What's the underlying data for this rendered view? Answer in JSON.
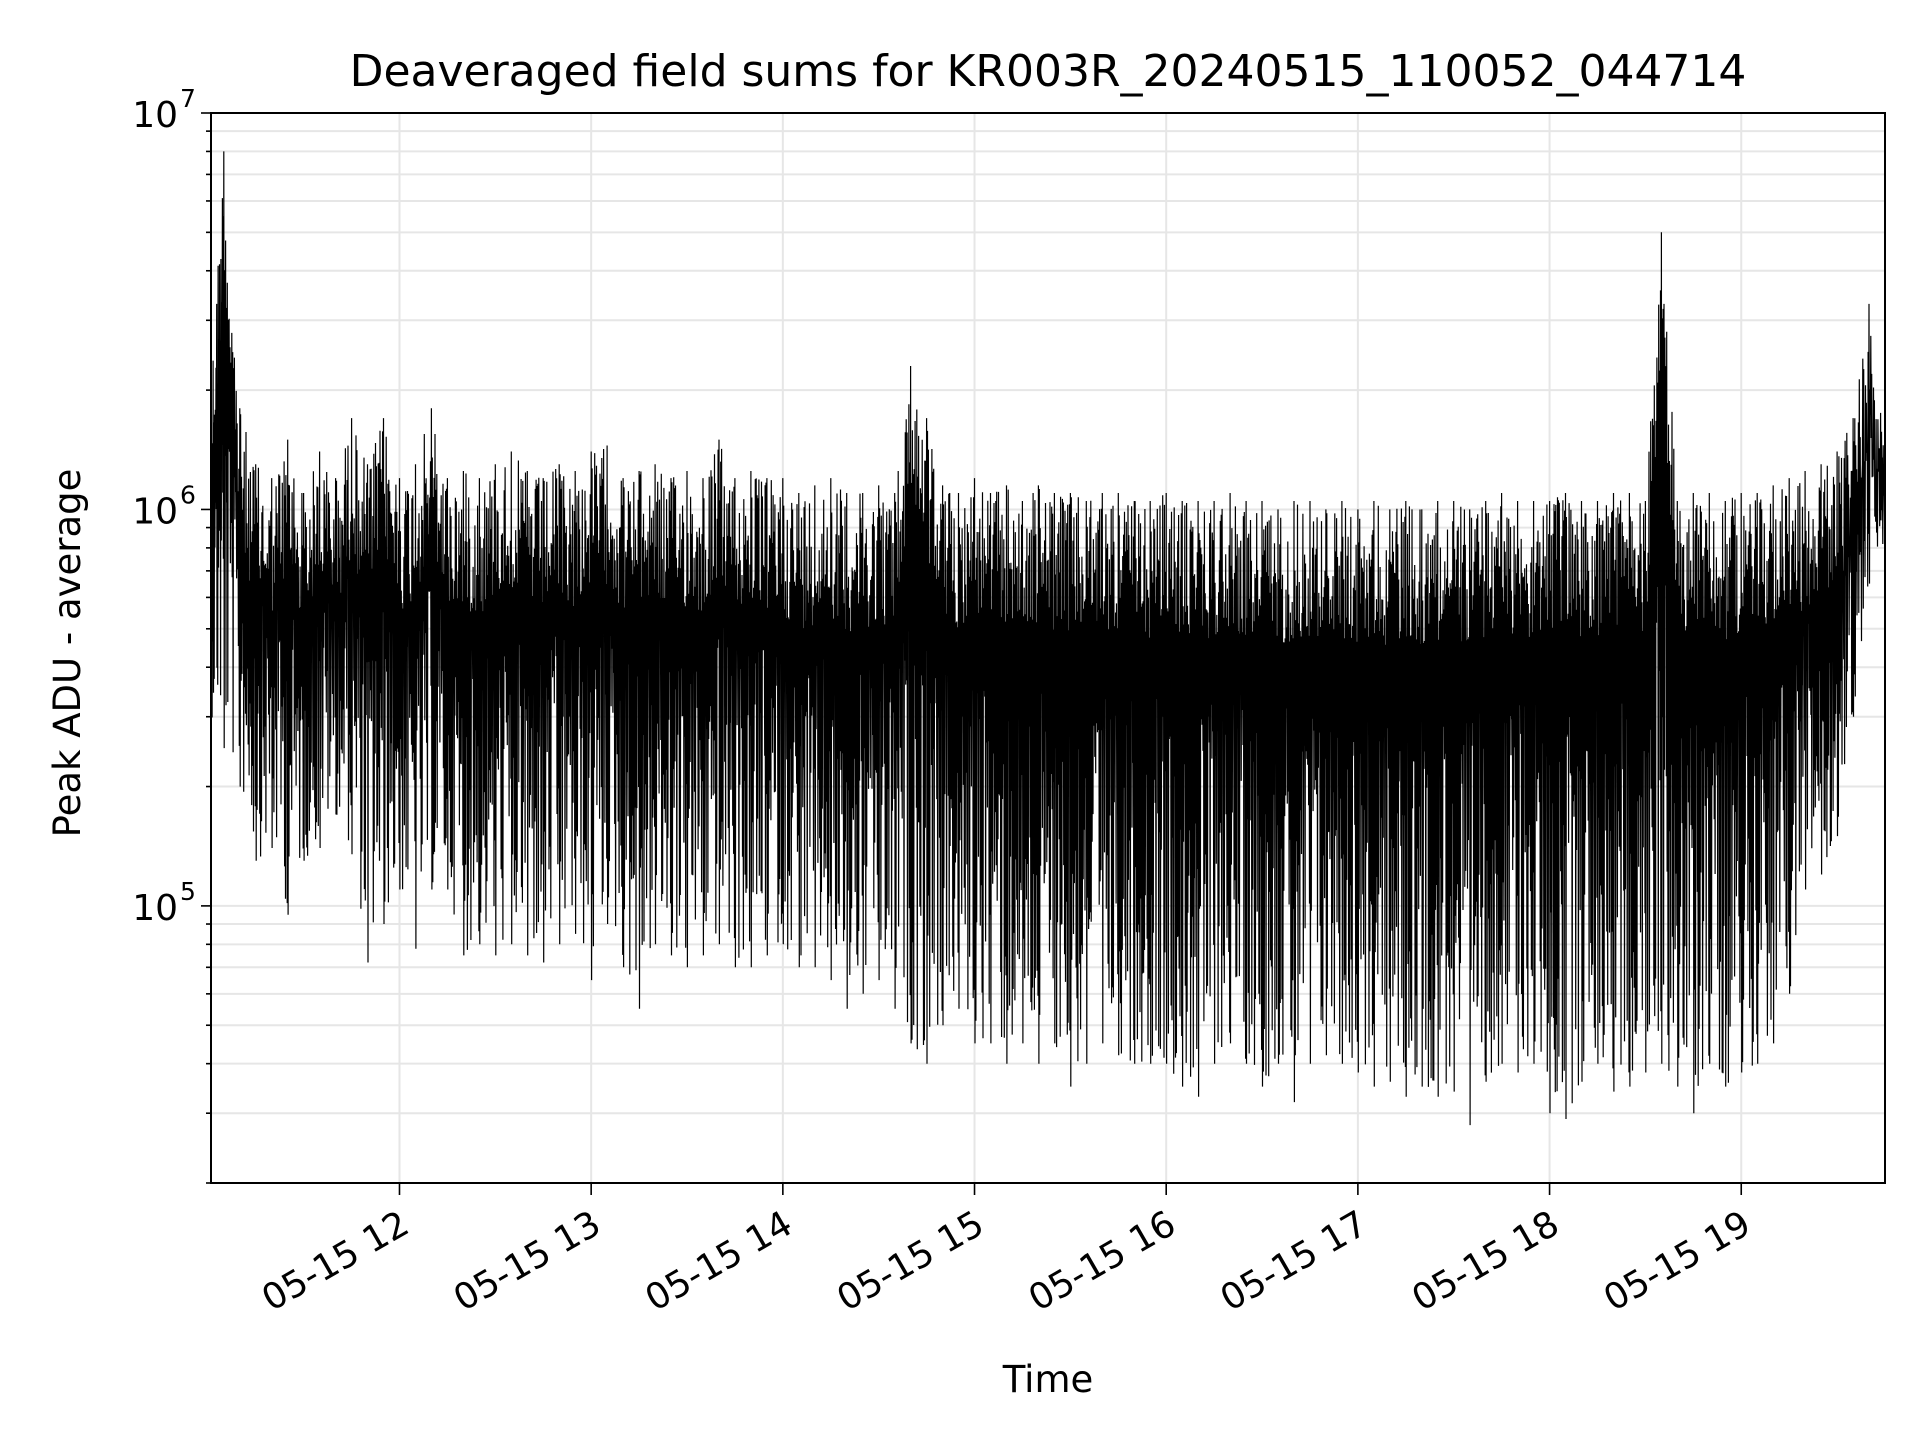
{
  "chart_data": {
    "type": "line",
    "title": "Deaveraged field sums for KR003R_20240515_110052_044714",
    "xlabel": "Time",
    "ylabel": "Peak ADU - average",
    "x_scale": "time",
    "y_scale": "log",
    "xlim": [
      "2024-05-15 11:01",
      "2024-05-15 19:45"
    ],
    "ylim": [
      20000,
      10000000
    ],
    "x_ticks": [
      {
        "value": "2024-05-15 12:00",
        "label": "05-15 12"
      },
      {
        "value": "2024-05-15 13:00",
        "label": "05-15 13"
      },
      {
        "value": "2024-05-15 14:00",
        "label": "05-15 14"
      },
      {
        "value": "2024-05-15 15:00",
        "label": "05-15 15"
      },
      {
        "value": "2024-05-15 16:00",
        "label": "05-15 16"
      },
      {
        "value": "2024-05-15 17:00",
        "label": "05-15 17"
      },
      {
        "value": "2024-05-15 18:00",
        "label": "05-15 18"
      },
      {
        "value": "2024-05-15 19:00",
        "label": "05-15 19"
      }
    ],
    "y_ticks": [
      {
        "value": 100000,
        "base": "10",
        "exp": "5"
      },
      {
        "value": 1000000,
        "base": "10",
        "exp": "6"
      },
      {
        "value": 10000000,
        "base": "10",
        "exp": "7"
      }
    ],
    "grid": true,
    "legend": "none",
    "line_color": "#000000",
    "series": [
      {
        "x": [
          "2024-05-15 11:01",
          "2024-05-15 11:05",
          "2024-05-15 11:10",
          "2024-05-15 11:15",
          "2024-05-15 11:20",
          "2024-05-15 11:25",
          "2024-05-15 11:30",
          "2024-05-15 11:35",
          "2024-05-15 11:40",
          "2024-05-15 11:45",
          "2024-05-15 11:50",
          "2024-05-15 11:55",
          "2024-05-15 12:00",
          "2024-05-15 12:05",
          "2024-05-15 12:10",
          "2024-05-15 12:15",
          "2024-05-15 12:20",
          "2024-05-15 12:25",
          "2024-05-15 12:30",
          "2024-05-15 12:35",
          "2024-05-15 12:40",
          "2024-05-15 12:45",
          "2024-05-15 12:50",
          "2024-05-15 12:55",
          "2024-05-15 13:00",
          "2024-05-15 13:05",
          "2024-05-15 13:10",
          "2024-05-15 13:15",
          "2024-05-15 13:20",
          "2024-05-15 13:25",
          "2024-05-15 13:30",
          "2024-05-15 13:35",
          "2024-05-15 13:40",
          "2024-05-15 13:45",
          "2024-05-15 13:50",
          "2024-05-15 13:55",
          "2024-05-15 14:00",
          "2024-05-15 14:05",
          "2024-05-15 14:10",
          "2024-05-15 14:15",
          "2024-05-15 14:20",
          "2024-05-15 14:25",
          "2024-05-15 14:30",
          "2024-05-15 14:35",
          "2024-05-15 14:40",
          "2024-05-15 14:45",
          "2024-05-15 14:50",
          "2024-05-15 14:55",
          "2024-05-15 15:00",
          "2024-05-15 15:05",
          "2024-05-15 15:10",
          "2024-05-15 15:15",
          "2024-05-15 15:20",
          "2024-05-15 15:25",
          "2024-05-15 15:30",
          "2024-05-15 15:35",
          "2024-05-15 15:40",
          "2024-05-15 15:45",
          "2024-05-15 15:50",
          "2024-05-15 15:55",
          "2024-05-15 16:00",
          "2024-05-15 16:05",
          "2024-05-15 16:10",
          "2024-05-15 16:15",
          "2024-05-15 16:20",
          "2024-05-15 16:25",
          "2024-05-15 16:30",
          "2024-05-15 16:35",
          "2024-05-15 16:40",
          "2024-05-15 16:45",
          "2024-05-15 16:50",
          "2024-05-15 16:55",
          "2024-05-15 17:00",
          "2024-05-15 17:05",
          "2024-05-15 17:10",
          "2024-05-15 17:15",
          "2024-05-15 17:20",
          "2024-05-15 17:25",
          "2024-05-15 17:30",
          "2024-05-15 17:35",
          "2024-05-15 17:40",
          "2024-05-15 17:45",
          "2024-05-15 17:50",
          "2024-05-15 17:55",
          "2024-05-15 18:00",
          "2024-05-15 18:05",
          "2024-05-15 18:10",
          "2024-05-15 18:15",
          "2024-05-15 18:20",
          "2024-05-15 18:25",
          "2024-05-15 18:30",
          "2024-05-15 18:35",
          "2024-05-15 18:40",
          "2024-05-15 18:45",
          "2024-05-15 18:50",
          "2024-05-15 18:55",
          "2024-05-15 19:00",
          "2024-05-15 19:05",
          "2024-05-15 19:10",
          "2024-05-15 19:15",
          "2024-05-15 19:20",
          "2024-05-15 19:25",
          "2024-05-15 19:30",
          "2024-05-15 19:35",
          "2024-05-15 19:40",
          "2024-05-15 19:45"
        ],
        "high": [
          2200000,
          8000000,
          1800000,
          1300000,
          1200000,
          1500000,
          1100000,
          1400000,
          1200000,
          1700000,
          1300000,
          1700000,
          1200000,
          1300000,
          1800000,
          1200000,
          1250000,
          1200000,
          1300000,
          1400000,
          1250000,
          1200000,
          1300000,
          1250000,
          1400000,
          1450000,
          1200000,
          1250000,
          1300000,
          1200000,
          1250000,
          1200000,
          1500000,
          1200000,
          1250000,
          1200000,
          1200000,
          1100000,
          1150000,
          1200000,
          1100000,
          1100000,
          1150000,
          1100000,
          2300000,
          1700000,
          1150000,
          1100000,
          1200000,
          1100000,
          1150000,
          1050000,
          1150000,
          1100000,
          1100000,
          1050000,
          1100000,
          1100000,
          1050000,
          1050000,
          1100000,
          1050000,
          1050000,
          1050000,
          1100000,
          1050000,
          1050000,
          1000000,
          1050000,
          1050000,
          1000000,
          1050000,
          1000000,
          1050000,
          1000000,
          1050000,
          1000000,
          1050000,
          1050000,
          1000000,
          1050000,
          1100000,
          1050000,
          1050000,
          1050000,
          1100000,
          1050000,
          1050000,
          1100000,
          1100000,
          1050000,
          5000000,
          1050000,
          1100000,
          1100000,
          1050000,
          1100000,
          1100000,
          1150000,
          1200000,
          1250000,
          1300000,
          1400000,
          1700000,
          3300000,
          1500000
        ],
        "low": [
          300000,
          250000,
          200000,
          130000,
          140000,
          95000,
          130000,
          140000,
          170000,
          135000,
          72000,
          90000,
          110000,
          78000,
          110000,
          110000,
          75000,
          80000,
          75000,
          80000,
          75000,
          72000,
          80000,
          85000,
          65000,
          90000,
          70000,
          55000,
          80000,
          75000,
          70000,
          75000,
          80000,
          70000,
          70000,
          75000,
          80000,
          70000,
          70000,
          65000,
          55000,
          60000,
          65000,
          55000,
          45000,
          40000,
          50000,
          55000,
          45000,
          45000,
          40000,
          45000,
          40000,
          45000,
          35000,
          40000,
          45000,
          42000,
          40000,
          40000,
          40000,
          35000,
          33000,
          40000,
          45000,
          40000,
          35000,
          40000,
          32000,
          40000,
          42000,
          40000,
          38000,
          35000,
          36000,
          33000,
          35000,
          33000,
          34000,
          28000,
          36000,
          40000,
          38000,
          40000,
          30000,
          29000,
          36000,
          40000,
          34000,
          35000,
          38000,
          40000,
          35000,
          30000,
          40000,
          35000,
          38000,
          40000,
          45000,
          60000,
          110000,
          120000,
          150000,
          300000,
          650000,
          800000
        ]
      }
    ]
  }
}
